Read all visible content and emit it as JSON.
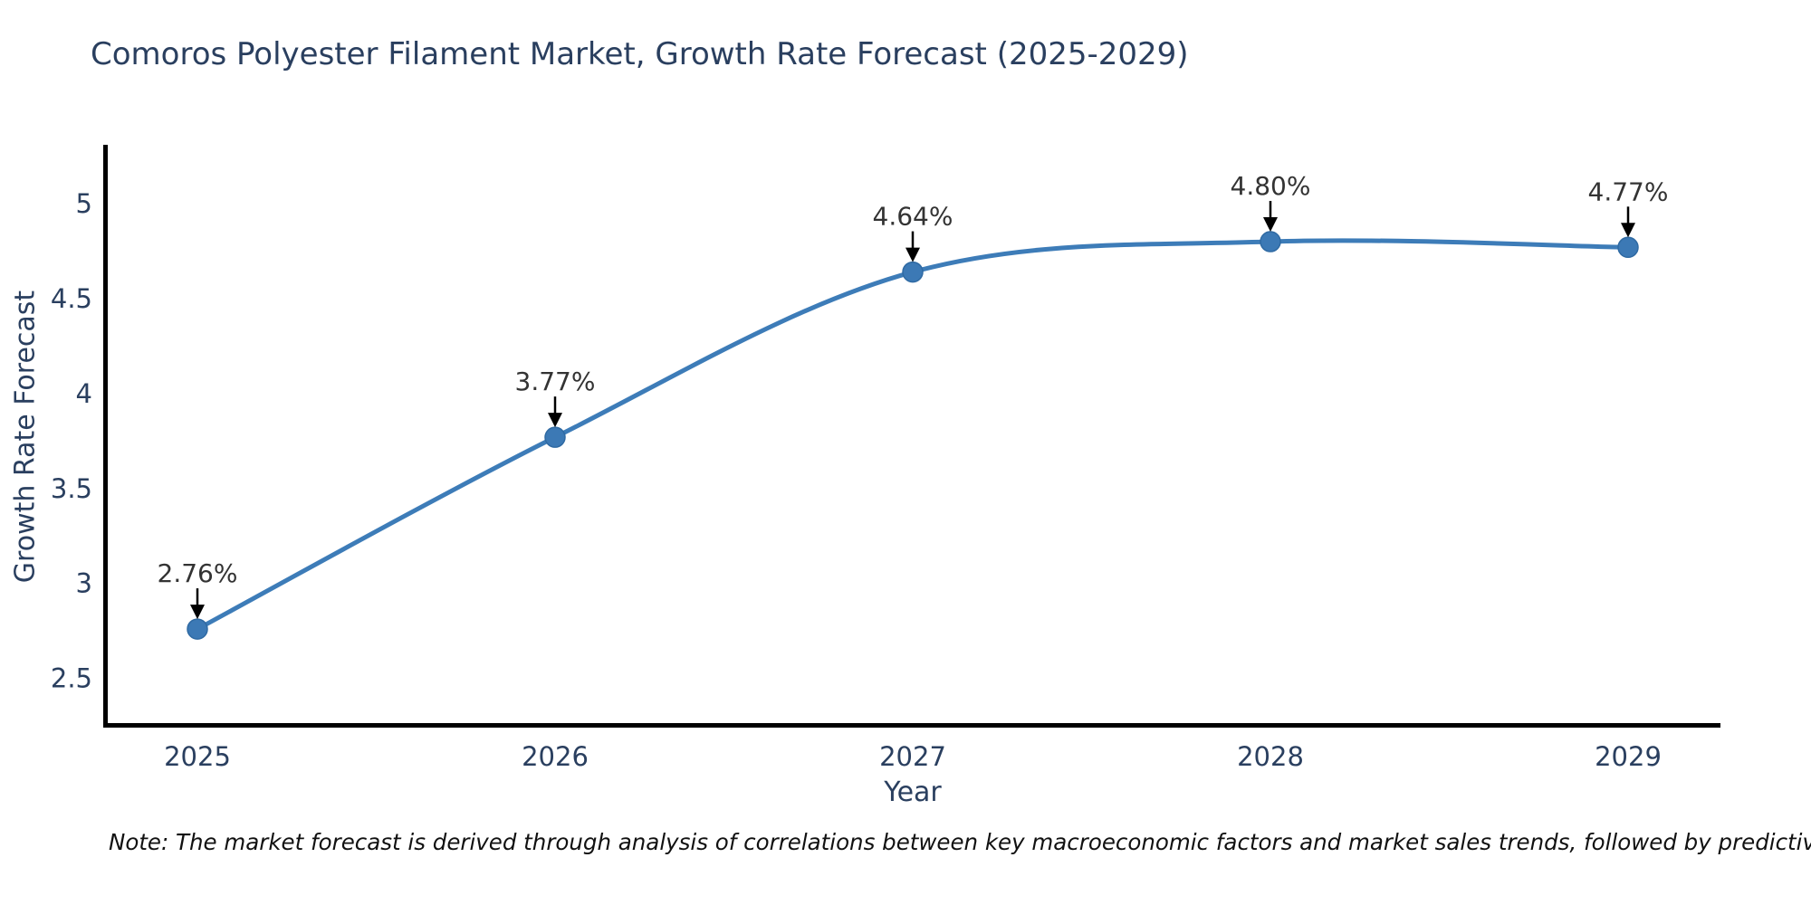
{
  "title": "Comoros Polyester Filament Market, Growth Rate Forecast (2025-2029)",
  "note": "Note: The market forecast is derived through analysis of correlations between key macroeconomic factors and market sales trends, followed by predictive modeling to project future sales",
  "colors": {
    "title_text": "#2a3f5f",
    "axis_text": "#2a3f5f",
    "line": "#3d7cb8",
    "marker_fill": "#3c79b5",
    "marker_stroke": "#2f6aa3",
    "annotation_text": "#333333",
    "annotation_arrow": "#000000",
    "axis_line": "#000000",
    "background": "#ffffff"
  },
  "chart_data": {
    "type": "line",
    "title": "Comoros Polyester Filament Market, Growth Rate Forecast (2025-2029)",
    "xlabel": "Year",
    "ylabel": "Growth Rate Forecast",
    "categories": [
      "2025",
      "2026",
      "2027",
      "2028",
      "2029"
    ],
    "x": [
      2025,
      2026,
      2027,
      2028,
      2029
    ],
    "values": [
      2.76,
      3.77,
      4.64,
      4.8,
      4.77
    ],
    "point_labels": [
      "2.76%",
      "3.77%",
      "4.64%",
      "4.80%",
      "4.77%"
    ],
    "yticks": [
      2.5,
      3,
      3.5,
      4,
      4.5,
      5
    ],
    "ylim": [
      2.26,
      5.31
    ],
    "grid": false,
    "legend": false,
    "line_shape": "spline",
    "units": "percent"
  }
}
